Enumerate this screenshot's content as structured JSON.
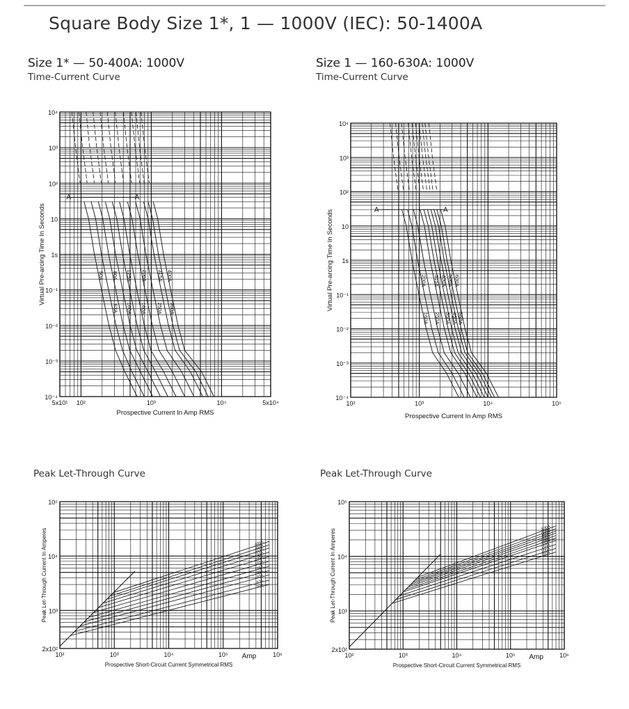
{
  "page": {
    "title": "Square Body Size 1*, 1 — 1000V (IEC): 50-1400A"
  },
  "sections": {
    "left_top": {
      "title": "Size 1* — 50-400A: 1000V",
      "subtitle": "Time-Current Curve"
    },
    "right_top": {
      "title": "Size 1 — 160-630A: 1000V",
      "subtitle": "Time-Current Curve"
    },
    "left_bottom": {
      "subtitle": "Peak Let-Through Curve"
    },
    "right_bottom": {
      "subtitle": "Peak Let-Through Curve"
    }
  },
  "chart_data": [
    {
      "id": "tc_left",
      "type": "line",
      "xscale": "log",
      "yscale": "log",
      "xlabel": "Prospective Current In Amp RMS",
      "ylabel": "Virtual Pre-arcing Time In Seconds",
      "xlim": [
        50,
        50000
      ],
      "ylim": [
        0.0001,
        10000
      ],
      "xticks": [
        {
          "value": 50,
          "label": "5x10¹"
        },
        {
          "value": 100,
          "label": "10²"
        },
        {
          "value": 1000,
          "label": "10³"
        },
        {
          "value": 10000,
          "label": "10⁴"
        },
        {
          "value": 50000,
          "label": "5x10⁴"
        }
      ],
      "yticks": [
        {
          "value": 10000,
          "label": "10⁴"
        },
        {
          "value": 1000,
          "label": "10³"
        },
        {
          "value": 100,
          "label": "10²"
        },
        {
          "value": 10,
          "label": "10"
        },
        {
          "value": 1,
          "label": "1s"
        },
        {
          "value": 0.1,
          "label": "10⁻¹"
        },
        {
          "value": 0.01,
          "label": "10⁻²"
        },
        {
          "value": 0.001,
          "label": "10⁻³"
        },
        {
          "value": 0.0001,
          "label": "10⁻⁴"
        }
      ],
      "marker_line": {
        "y": 40,
        "x_start": 70,
        "x_end": 600,
        "label": "A"
      },
      "series": [
        {
          "name": "50A",
          "knee": 135,
          "low_x": 420,
          "label_y": 0.25,
          "label_pos": "high"
        },
        {
          "name": "63A",
          "knee": 170,
          "low_x": 530,
          "label_y": 0.03,
          "label_pos": "low"
        },
        {
          "name": "80A",
          "knee": 215,
          "low_x": 700,
          "label_y": 0.25,
          "label_pos": "high"
        },
        {
          "name": "100A",
          "knee": 270,
          "low_x": 900,
          "label_y": 0.03,
          "label_pos": "low"
        },
        {
          "name": "125A",
          "knee": 340,
          "low_x": 1150,
          "label_y": 0.25,
          "label_pos": "high"
        },
        {
          "name": "160A",
          "knee": 430,
          "low_x": 1500,
          "label_y": 0.03,
          "label_pos": "low"
        },
        {
          "name": "200A",
          "knee": 560,
          "low_x": 2000,
          "label_y": 0.25,
          "label_pos": "high"
        },
        {
          "name": "250A",
          "knee": 730,
          "low_x": 2700,
          "label_y": 0.03,
          "label_pos": "low"
        },
        {
          "name": "315A",
          "knee": 950,
          "low_x": 3600,
          "label_y": 0.25,
          "label_pos": "high"
        },
        {
          "name": "350A",
          "knee": 1100,
          "low_x": 4300,
          "label_y": 0.03,
          "label_pos": "low"
        },
        {
          "name": "400A",
          "knee": 1300,
          "low_x": 5200,
          "label_y": 0.25,
          "label_pos": "high"
        }
      ]
    },
    {
      "id": "tc_right",
      "type": "line",
      "xscale": "log",
      "yscale": "log",
      "xlabel": "Prospective Current In Amp RMS",
      "ylabel": "Virtual Pre-arcing Time In Seconds",
      "xlim": [
        100,
        100000
      ],
      "ylim": [
        0.0001,
        10000
      ],
      "xticks": [
        {
          "value": 100,
          "label": "10²"
        },
        {
          "value": 1000,
          "label": "10³"
        },
        {
          "value": 10000,
          "label": "10⁴"
        },
        {
          "value": 100000,
          "label": "10⁵"
        }
      ],
      "yticks": [
        {
          "value": 10000,
          "label": "10⁴"
        },
        {
          "value": 1000,
          "label": "10³"
        },
        {
          "value": 100,
          "label": "10²"
        },
        {
          "value": 10,
          "label": "10"
        },
        {
          "value": 1,
          "label": "1s"
        },
        {
          "value": 0.1,
          "label": "10⁻¹"
        },
        {
          "value": 0.01,
          "label": "10⁻²"
        },
        {
          "value": 0.001,
          "label": "10⁻³"
        },
        {
          "value": 0.0001,
          "label": "10⁻⁴"
        }
      ],
      "marker_line": {
        "y": 30,
        "x_start": 250,
        "x_end": 2300,
        "label": "A"
      },
      "series": [
        {
          "name": "160A",
          "knee": 680,
          "low_x": 2500,
          "label_y": 0.02,
          "label_pos": "low"
        },
        {
          "name": "200A",
          "knee": 820,
          "low_x": 3000,
          "label_y": 0.25,
          "label_pos": "high"
        },
        {
          "name": "250A",
          "knee": 1000,
          "low_x": 3700,
          "label_y": 0.02,
          "label_pos": "low"
        },
        {
          "name": "315A",
          "knee": 1250,
          "low_x": 4600,
          "label_y": 0.25,
          "label_pos": "high"
        },
        {
          "name": "350A",
          "knee": 1420,
          "low_x": 5200,
          "label_y": 0.02,
          "label_pos": "low"
        },
        {
          "name": "400A",
          "knee": 1600,
          "low_x": 5900,
          "label_y": 0.25,
          "label_pos": "high"
        },
        {
          "name": "450A",
          "knee": 1800,
          "low_x": 6700,
          "label_y": 0.02,
          "label_pos": "low"
        },
        {
          "name": "500A",
          "knee": 2000,
          "low_x": 7500,
          "label_y": 0.25,
          "label_pos": "high"
        },
        {
          "name": "550A",
          "knee": 2200,
          "low_x": 8300,
          "label_y": 0.02,
          "label_pos": "low"
        },
        {
          "name": "630A",
          "knee": 2500,
          "low_x": 9500,
          "label_y": 0.25,
          "label_pos": "high"
        }
      ]
    },
    {
      "id": "plt_left",
      "type": "line",
      "xscale": "log",
      "yscale": "log",
      "xlabel": "Prospective Short-Circuit Current Symmetrical RMS",
      "ylabel": "Peak Let-Through Current In Amperes",
      "unit_label": "Amp",
      "xlim": [
        100,
        1000000
      ],
      "ylim": [
        200,
        100000
      ],
      "xticks": [
        {
          "value": 100,
          "label": "10²"
        },
        {
          "value": 1000,
          "label": "10³"
        },
        {
          "value": 10000,
          "label": "10⁴"
        },
        {
          "value": 100000,
          "label": "10⁵"
        },
        {
          "value": 1000000,
          "label": "10⁶"
        }
      ],
      "yticks": [
        {
          "value": 100000,
          "label": "10⁵"
        },
        {
          "value": 10000,
          "label": "10⁴"
        },
        {
          "value": 1000,
          "label": "10³"
        },
        {
          "value": 200,
          "label": "2x10²"
        }
      ],
      "series": [
        {
          "name": "50A",
          "end_y": 3000
        },
        {
          "name": "63A",
          "end_y": 3600
        },
        {
          "name": "80A",
          "end_y": 4500
        },
        {
          "name": "100A",
          "end_y": 5400
        },
        {
          "name": "125A",
          "end_y": 6500
        },
        {
          "name": "160A",
          "end_y": 8000
        },
        {
          "name": "200A",
          "end_y": 9800
        },
        {
          "name": "250A",
          "end_y": 11800
        },
        {
          "name": "315A",
          "end_y": 14000
        },
        {
          "name": "350A",
          "end_y": 16000
        },
        {
          "name": "400A",
          "end_y": 18500
        }
      ]
    },
    {
      "id": "plt_right",
      "type": "line",
      "xscale": "log",
      "yscale": "log",
      "xlabel": "Prospective Short-Circuit Current Symmetrical RMS",
      "ylabel": "Peak Let-Through Current In Amperes",
      "unit_label": "Amp",
      "xlim": [
        100,
        1000000
      ],
      "ylim": [
        200,
        100000
      ],
      "xticks": [
        {
          "value": 100,
          "label": "10²"
        },
        {
          "value": 1000,
          "label": "10³"
        },
        {
          "value": 10000,
          "label": "10⁴"
        },
        {
          "value": 100000,
          "label": "10⁵"
        },
        {
          "value": 1000000,
          "label": "10⁶"
        }
      ],
      "yticks": [
        {
          "value": 100000,
          "label": "10⁵"
        },
        {
          "value": 10000,
          "label": "10⁴"
        },
        {
          "value": 1000,
          "label": "10³"
        },
        {
          "value": 200,
          "label": "2x10²"
        }
      ],
      "series": [
        {
          "name": "160A",
          "end_y": 12000
        },
        {
          "name": "200A",
          "end_y": 14000
        },
        {
          "name": "250A",
          "end_y": 16500
        },
        {
          "name": "315A",
          "end_y": 19500
        },
        {
          "name": "350A",
          "end_y": 21500
        },
        {
          "name": "400A",
          "end_y": 24000
        },
        {
          "name": "450A",
          "end_y": 26500
        },
        {
          "name": "500A",
          "end_y": 29000
        },
        {
          "name": "550A",
          "end_y": 32000
        },
        {
          "name": "630A",
          "end_y": 36000
        }
      ]
    }
  ]
}
